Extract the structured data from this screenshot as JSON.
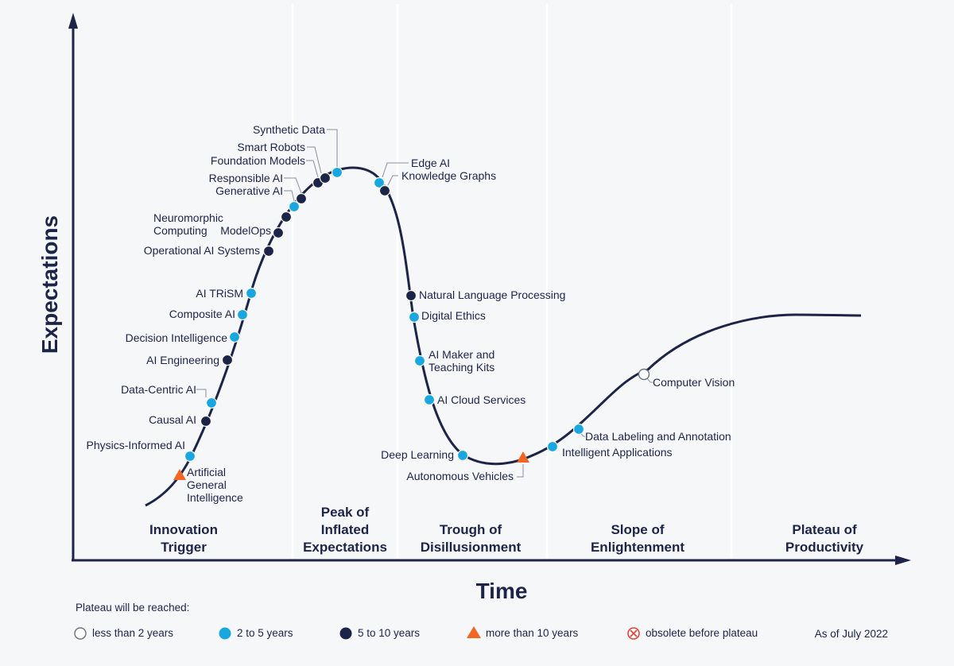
{
  "chart_data": {
    "type": "line",
    "x_axis_label": "Time",
    "y_axis_label": "Expectations",
    "as_of": "As of July 2022",
    "colors": {
      "less_than_2": "#ffffff",
      "two_to_five": "#1aa7e0",
      "five_to_ten": "#1c2448",
      "more_than_10": "#f26522",
      "obsolete": "#e0413a",
      "curve": "#1c2448",
      "axis": "#1c2448"
    },
    "phases": [
      {
        "lines": [
          "Innovation",
          "Trigger"
        ]
      },
      {
        "lines": [
          "Peak of",
          "Inflated",
          "Expectations"
        ]
      },
      {
        "lines": [
          "Trough of",
          "Disillusionment"
        ]
      },
      {
        "lines": [
          "Slope of",
          "Enlightenment"
        ]
      },
      {
        "lines": [
          "Plateau of",
          "Productivity"
        ]
      }
    ],
    "technologies": [
      {
        "name": "Artificial General Intelligence",
        "lines": [
          "Artificial",
          "General",
          "Intelligence"
        ],
        "category": "more than 10 years"
      },
      {
        "name": "Physics-Informed AI",
        "lines": [
          "Physics-Informed AI"
        ],
        "category": "2 to 5 years"
      },
      {
        "name": "Causal AI",
        "lines": [
          "Causal AI"
        ],
        "category": "5 to 10 years"
      },
      {
        "name": "Data-Centric AI",
        "lines": [
          "Data-Centric AI"
        ],
        "category": "2 to 5 years"
      },
      {
        "name": "AI Engineering",
        "lines": [
          "AI Engineering"
        ],
        "category": "5 to 10 years"
      },
      {
        "name": "Decision Intelligence",
        "lines": [
          "Decision Intelligence"
        ],
        "category": "2 to 5 years"
      },
      {
        "name": "Composite AI",
        "lines": [
          "Composite AI"
        ],
        "category": "2 to 5 years"
      },
      {
        "name": "AI TRiSM",
        "lines": [
          "AI TRiSM"
        ],
        "category": "2 to 5 years"
      },
      {
        "name": "Operational AI Systems",
        "lines": [
          "Operational AI Systems"
        ],
        "category": "5 to 10 years"
      },
      {
        "name": "Neuromorphic Computing",
        "lines": [
          "Neuromorphic",
          "Computing"
        ],
        "category": "5 to 10 years"
      },
      {
        "name": "ModelOps",
        "lines": [
          "ModelOps"
        ],
        "category": "5 to 10 years"
      },
      {
        "name": "Generative AI",
        "lines": [
          "Generative AI"
        ],
        "category": "2 to 5 years"
      },
      {
        "name": "Responsible AI",
        "lines": [
          "Responsible AI"
        ],
        "category": "5 to 10 years"
      },
      {
        "name": "Foundation Models",
        "lines": [
          "Foundation Models"
        ],
        "category": "5 to 10 years"
      },
      {
        "name": "Smart Robots",
        "lines": [
          "Smart Robots"
        ],
        "category": "5 to 10 years"
      },
      {
        "name": "Synthetic Data",
        "lines": [
          "Synthetic Data"
        ],
        "category": "2 to 5 years"
      },
      {
        "name": "Edge AI",
        "lines": [
          "Edge AI"
        ],
        "category": "2 to 5 years"
      },
      {
        "name": "Knowledge Graphs",
        "lines": [
          "Knowledge Graphs"
        ],
        "category": "5 to 10 years"
      },
      {
        "name": "Natural Language Processing",
        "lines": [
          "Natural Language Processing"
        ],
        "category": "5 to 10 years"
      },
      {
        "name": "Digital Ethics",
        "lines": [
          "Digital Ethics"
        ],
        "category": "2 to 5 years"
      },
      {
        "name": "AI Maker and Teaching Kits",
        "lines": [
          "AI Maker and",
          "Teaching Kits"
        ],
        "category": "2 to 5 years"
      },
      {
        "name": "AI Cloud Services",
        "lines": [
          "AI Cloud Services"
        ],
        "category": "2 to 5 years"
      },
      {
        "name": "Deep Learning",
        "lines": [
          "Deep Learning"
        ],
        "category": "2 to 5 years"
      },
      {
        "name": "Autonomous Vehicles",
        "lines": [
          "Autonomous Vehicles"
        ],
        "category": "more than 10 years"
      },
      {
        "name": "Intelligent Applications",
        "lines": [
          "Intelligent Applications"
        ],
        "category": "2 to 5 years"
      },
      {
        "name": "Data Labeling and Annotation",
        "lines": [
          "Data Labeling and Annotation"
        ],
        "category": "2 to 5 years"
      },
      {
        "name": "Computer Vision",
        "lines": [
          "Computer Vision"
        ],
        "category": "less than 2 years"
      }
    ],
    "legend": {
      "title": "Plateau will be reached:",
      "items": [
        {
          "label": "less than 2 years",
          "shape": "circle-open"
        },
        {
          "label": "2 to 5 years",
          "shape": "circle-light"
        },
        {
          "label": "5 to 10 years",
          "shape": "circle-dark"
        },
        {
          "label": "more than 10 years",
          "shape": "triangle"
        },
        {
          "label": "obsolete before plateau",
          "shape": "circle-x"
        }
      ]
    }
  }
}
